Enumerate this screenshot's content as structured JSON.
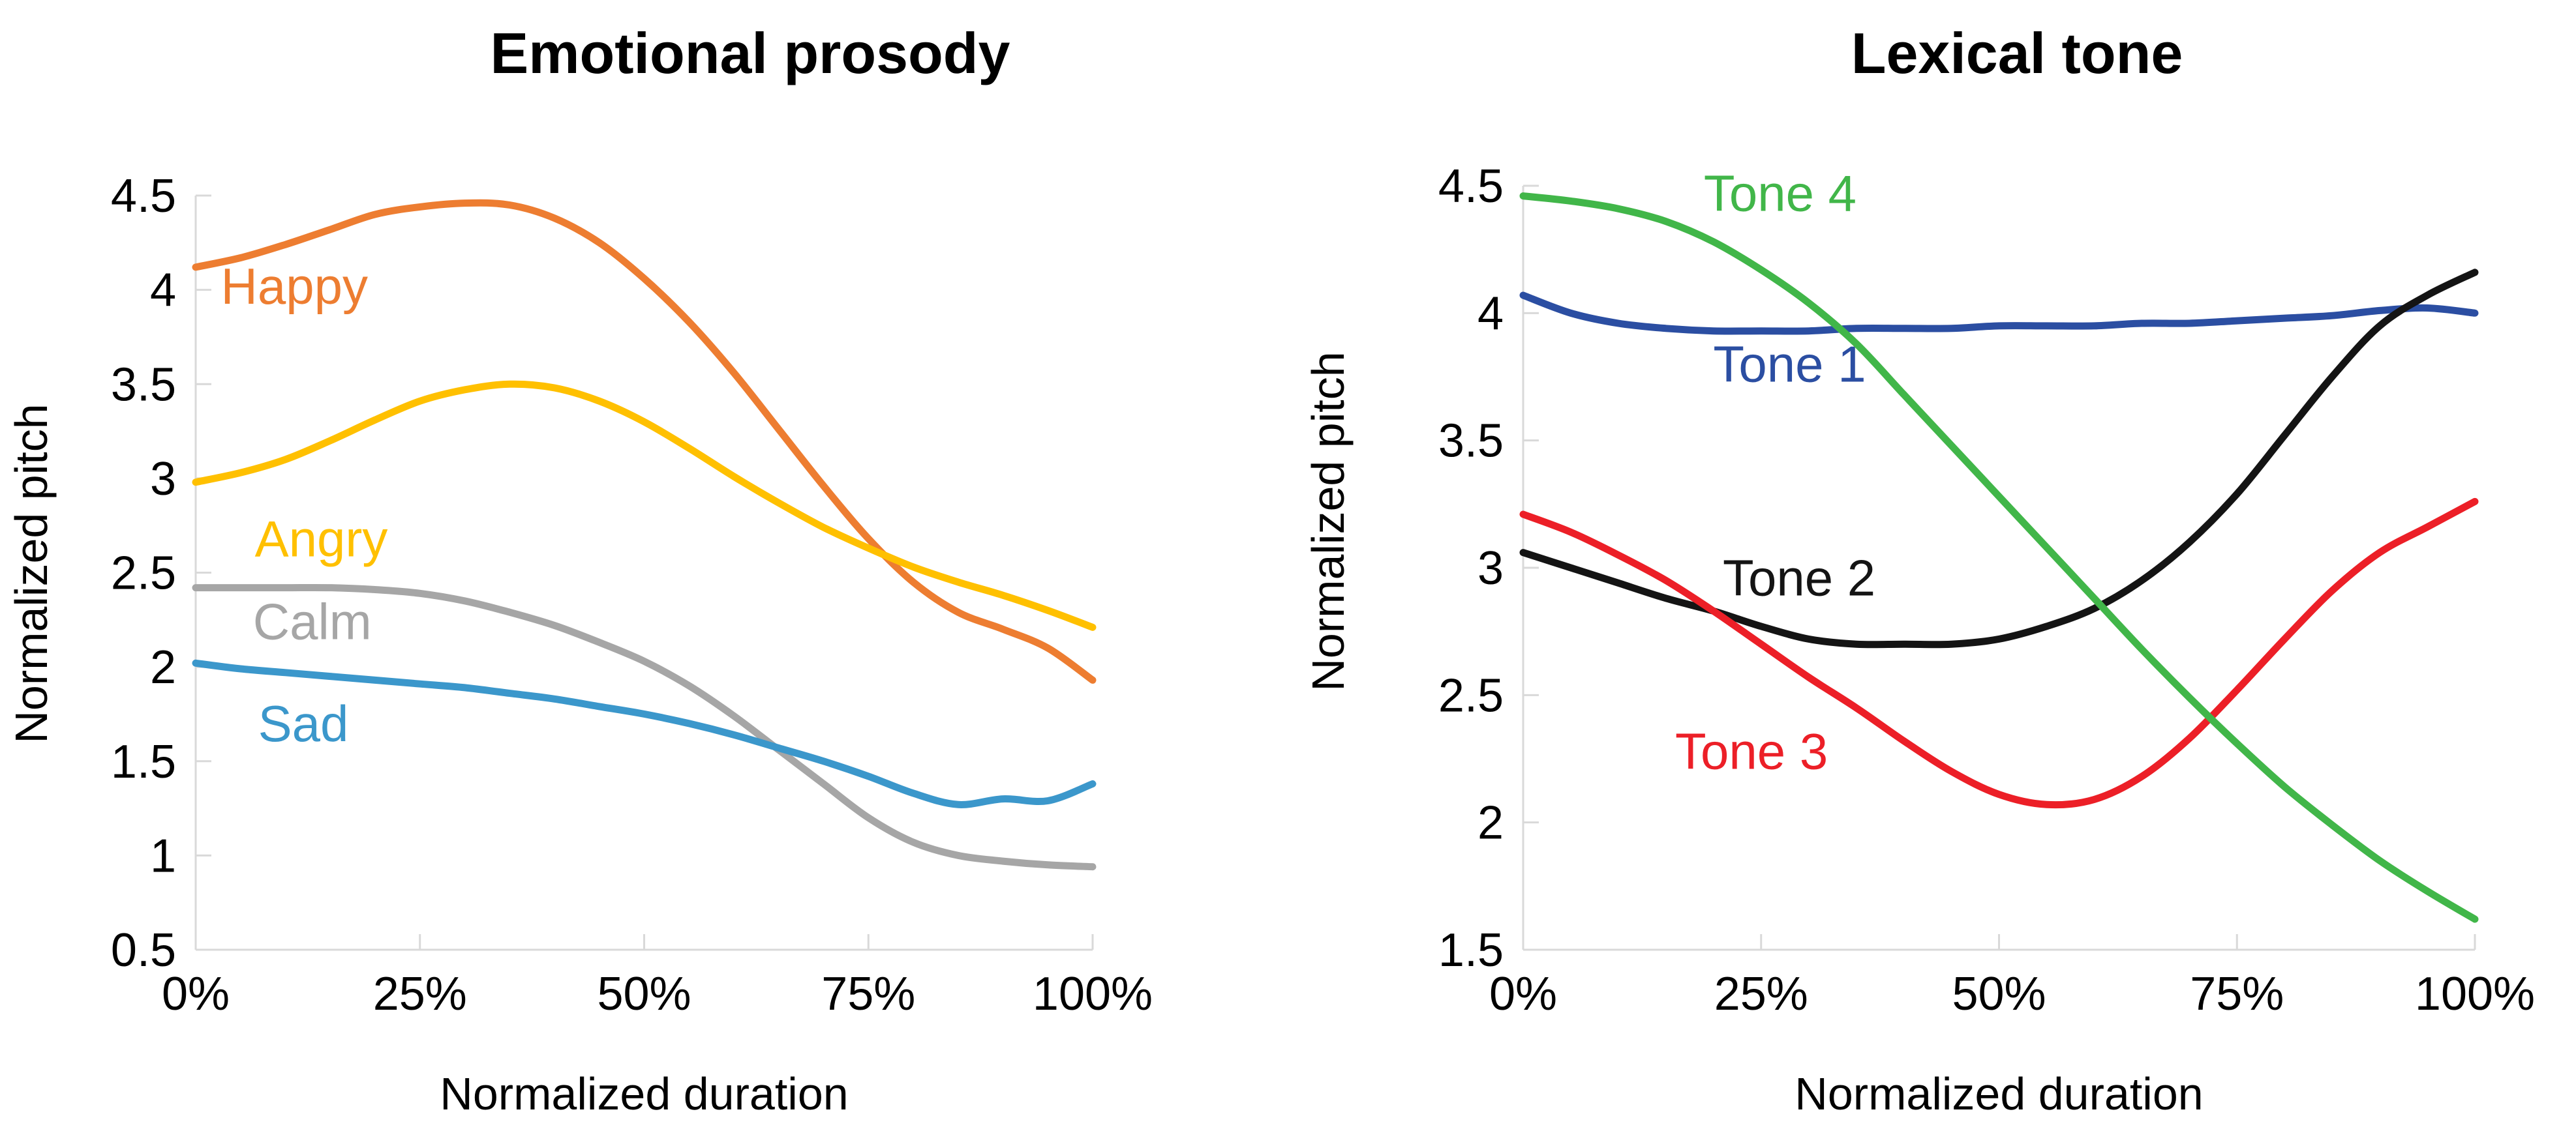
{
  "figure": {
    "background": "#FFFFFF",
    "axis_color": "#D9D9D9",
    "text_color": "#000000"
  },
  "chart_data": [
    {
      "type": "line",
      "title": "Emotional prosody",
      "xlabel": "Normalized duration",
      "ylabel": "Normalized pitch",
      "xlim": [
        0,
        100
      ],
      "ylim": [
        0.5,
        4.5
      ],
      "grid": false,
      "legend_position": "inline-labels",
      "x_tick_values": [
        0,
        25,
        50,
        75,
        100
      ],
      "x_tick_labels": [
        "0%",
        "25%",
        "50%",
        "75%",
        "100%"
      ],
      "y_tick_values": [
        4.5,
        4,
        3.5,
        3,
        2.5,
        2,
        1.5,
        1,
        0.5
      ],
      "y_tick_labels": [
        "4.5",
        "4",
        "3.5",
        "3",
        "2.5",
        "2",
        "1.5",
        "1",
        "0.5"
      ],
      "x": [
        0,
        5,
        10,
        15,
        20,
        25,
        30,
        35,
        40,
        45,
        50,
        55,
        60,
        65,
        70,
        75,
        80,
        85,
        90,
        95,
        100
      ],
      "series": [
        {
          "name": "Happy",
          "color": "#ED7D31",
          "label": {
            "x": 11,
            "y": 4.02
          },
          "values": [
            4.12,
            4.17,
            4.24,
            4.32,
            4.4,
            4.44,
            4.46,
            4.45,
            4.38,
            4.25,
            4.06,
            3.83,
            3.56,
            3.26,
            2.96,
            2.68,
            2.45,
            2.29,
            2.2,
            2.1,
            1.93
          ]
        },
        {
          "name": "Angry",
          "color": "#FFC000",
          "label": {
            "x": 14,
            "y": 2.68
          },
          "values": [
            2.98,
            3.03,
            3.1,
            3.2,
            3.31,
            3.41,
            3.47,
            3.5,
            3.48,
            3.41,
            3.3,
            3.16,
            3.01,
            2.87,
            2.74,
            2.63,
            2.53,
            2.45,
            2.38,
            2.3,
            2.21
          ]
        },
        {
          "name": "Calm",
          "color": "#A6A6A6",
          "label": {
            "x": 13,
            "y": 2.24
          },
          "values": [
            2.42,
            2.42,
            2.42,
            2.42,
            2.41,
            2.39,
            2.35,
            2.29,
            2.22,
            2.13,
            2.03,
            1.9,
            1.74,
            1.56,
            1.38,
            1.2,
            1.07,
            1.0,
            0.97,
            0.95,
            0.94
          ]
        },
        {
          "name": "Sad",
          "color": "#3B97CB",
          "label": {
            "x": 12,
            "y": 1.7
          },
          "values": [
            2.02,
            1.99,
            1.97,
            1.95,
            1.93,
            1.91,
            1.89,
            1.86,
            1.83,
            1.79,
            1.75,
            1.7,
            1.64,
            1.57,
            1.5,
            1.42,
            1.33,
            1.27,
            1.3,
            1.29,
            1.38
          ]
        }
      ]
    },
    {
      "type": "line",
      "title": "Lexical tone",
      "xlabel": "Normalized duration",
      "ylabel": "Normalized pitch",
      "xlim": [
        0,
        100
      ],
      "ylim": [
        1.5,
        4.5
      ],
      "grid": false,
      "legend_position": "inline-labels",
      "x_tick_values": [
        0,
        25,
        50,
        75,
        100
      ],
      "x_tick_labels": [
        "0%",
        "25%",
        "50%",
        "75%",
        "100%"
      ],
      "y_tick_values": [
        4.5,
        4,
        3.5,
        3,
        2.5,
        2,
        1.5
      ],
      "y_tick_labels": [
        "4.5",
        "4",
        "3.5",
        "3",
        "2.5",
        "2",
        "1.5"
      ],
      "x": [
        0,
        5,
        10,
        15,
        20,
        25,
        30,
        35,
        40,
        45,
        50,
        55,
        60,
        65,
        70,
        75,
        80,
        85,
        90,
        95,
        100
      ],
      "series": [
        {
          "name": "Tone 1",
          "color": "#2B4EA2",
          "label": {
            "x": 28,
            "y": 3.8
          },
          "values": [
            4.07,
            4.0,
            3.96,
            3.94,
            3.93,
            3.93,
            3.93,
            3.94,
            3.94,
            3.94,
            3.95,
            3.95,
            3.95,
            3.96,
            3.96,
            3.97,
            3.98,
            3.99,
            4.01,
            4.02,
            4.0
          ]
        },
        {
          "name": "Tone 2",
          "color": "#141414",
          "label": {
            "x": 29,
            "y": 2.96
          },
          "values": [
            3.06,
            3.0,
            2.94,
            2.88,
            2.83,
            2.77,
            2.72,
            2.7,
            2.7,
            2.7,
            2.72,
            2.77,
            2.84,
            2.95,
            3.1,
            3.29,
            3.52,
            3.75,
            3.95,
            4.07,
            4.16
          ]
        },
        {
          "name": "Tone 3",
          "color": "#EC1F27",
          "label": {
            "x": 24,
            "y": 2.28
          },
          "values": [
            3.21,
            3.14,
            3.05,
            2.95,
            2.83,
            2.7,
            2.57,
            2.45,
            2.32,
            2.2,
            2.11,
            2.07,
            2.09,
            2.18,
            2.33,
            2.52,
            2.72,
            2.91,
            3.06,
            3.16,
            3.26
          ]
        },
        {
          "name": "Tone 4",
          "color": "#41B649",
          "label": {
            "x": 27,
            "y": 4.47
          },
          "values": [
            4.46,
            4.44,
            4.41,
            4.36,
            4.28,
            4.17,
            4.04,
            3.88,
            3.68,
            3.48,
            3.28,
            3.08,
            2.88,
            2.68,
            2.49,
            2.31,
            2.14,
            1.99,
            1.85,
            1.73,
            1.62
          ]
        }
      ]
    }
  ]
}
